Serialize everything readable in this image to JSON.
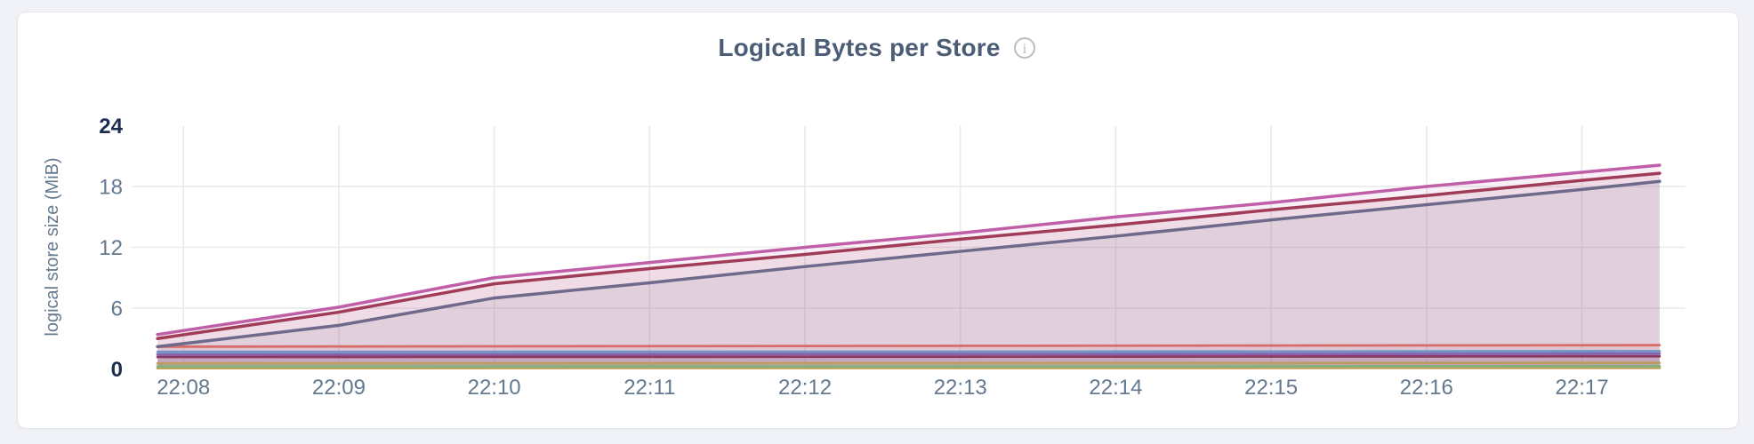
{
  "colors": {
    "page_background": "#f0f2f7",
    "card_background": "#ffffff",
    "card_border": "#e4e5ea",
    "title_text": "#4c5d77",
    "info_icon": "#b7bbc3",
    "grid": "#e9e9ec",
    "tick_text": "#64798f",
    "tick_text_emphasis": "#1d2d50"
  },
  "header": {
    "title": "Logical Bytes per Store",
    "info_icon_glyph": "i"
  },
  "chart_data": {
    "type": "area",
    "title": "Logical Bytes per Store",
    "xlabel": "",
    "ylabel": "logical store size (MiB)",
    "ylim": [
      0,
      24
    ],
    "x_domain_seconds": [
      0,
      600
    ],
    "grid": true,
    "legend": "none",
    "fill_opacity": 0.1,
    "grid_y_values": [
      6,
      12,
      18
    ],
    "yticks": [
      {
        "value": 0,
        "label": "0",
        "bold": true
      },
      {
        "value": 6,
        "label": "6",
        "bold": false
      },
      {
        "value": 12,
        "label": "12",
        "bold": false
      },
      {
        "value": 18,
        "label": "18",
        "bold": false
      },
      {
        "value": 24,
        "label": "24",
        "bold": true
      }
    ],
    "xticks": [
      {
        "t": 20,
        "label": "22:08"
      },
      {
        "t": 80,
        "label": "22:09"
      },
      {
        "t": 140,
        "label": "22:10"
      },
      {
        "t": 200,
        "label": "22:11"
      },
      {
        "t": 260,
        "label": "22:12"
      },
      {
        "t": 320,
        "label": "22:13"
      },
      {
        "t": 380,
        "label": "22:14"
      },
      {
        "t": 440,
        "label": "22:15"
      },
      {
        "t": 500,
        "label": "22:16"
      },
      {
        "t": 560,
        "label": "22:17"
      }
    ],
    "series": [
      {
        "id": "series-1",
        "color": "#c05fa8",
        "line_width": 3.5,
        "points": [
          [
            10,
            3.4
          ],
          [
            80,
            6.1
          ],
          [
            140,
            9.0
          ],
          [
            200,
            10.5
          ],
          [
            260,
            12.0
          ],
          [
            320,
            13.4
          ],
          [
            380,
            15.0
          ],
          [
            440,
            16.4
          ],
          [
            500,
            18.0
          ],
          [
            560,
            19.4
          ],
          [
            590,
            20.1
          ]
        ]
      },
      {
        "id": "series-2",
        "color": "#a03c58",
        "line_width": 3.5,
        "points": [
          [
            10,
            3.0
          ],
          [
            80,
            5.6
          ],
          [
            140,
            8.4
          ],
          [
            200,
            9.9
          ],
          [
            260,
            11.3
          ],
          [
            320,
            12.8
          ],
          [
            380,
            14.2
          ],
          [
            440,
            15.7
          ],
          [
            500,
            17.1
          ],
          [
            560,
            18.6
          ],
          [
            590,
            19.3
          ]
        ]
      },
      {
        "id": "series-3",
        "color": "#6f6a8c",
        "line_width": 3.5,
        "points": [
          [
            10,
            2.2
          ],
          [
            80,
            4.3
          ],
          [
            140,
            7.0
          ],
          [
            200,
            8.5
          ],
          [
            260,
            10.1
          ],
          [
            320,
            11.6
          ],
          [
            380,
            13.1
          ],
          [
            440,
            14.7
          ],
          [
            500,
            16.2
          ],
          [
            560,
            17.7
          ],
          [
            590,
            18.5
          ]
        ]
      },
      {
        "id": "series-4",
        "color": "#d66d6a",
        "line_width": 2.8,
        "points": [
          [
            10,
            2.2
          ],
          [
            300,
            2.28
          ],
          [
            590,
            2.35
          ]
        ]
      },
      {
        "id": "series-5",
        "color": "#7293c6",
        "line_width": 2.8,
        "points": [
          [
            10,
            1.68
          ],
          [
            300,
            1.7
          ],
          [
            590,
            1.75
          ]
        ]
      },
      {
        "id": "series-6",
        "color": "#8762aa",
        "line_width": 2.8,
        "points": [
          [
            10,
            1.42
          ],
          [
            300,
            1.46
          ],
          [
            590,
            1.5
          ]
        ]
      },
      {
        "id": "series-7",
        "color": "#8c3864",
        "line_width": 2.8,
        "points": [
          [
            10,
            1.18
          ],
          [
            300,
            1.21
          ],
          [
            590,
            1.25
          ]
        ]
      },
      {
        "id": "series-8",
        "color": "#bd9d5f",
        "line_width": 2.8,
        "points": [
          [
            10,
            0.55
          ],
          [
            300,
            0.57
          ],
          [
            590,
            0.6
          ]
        ]
      },
      {
        "id": "series-9",
        "color": "#82b182",
        "line_width": 2.8,
        "points": [
          [
            10,
            0.25
          ],
          [
            300,
            0.26
          ],
          [
            590,
            0.28
          ]
        ]
      },
      {
        "id": "series-10",
        "color": "#c2a25a",
        "line_width": 2.8,
        "points": [
          [
            10,
            0.08
          ],
          [
            300,
            0.09
          ],
          [
            590,
            0.1
          ]
        ]
      }
    ]
  }
}
